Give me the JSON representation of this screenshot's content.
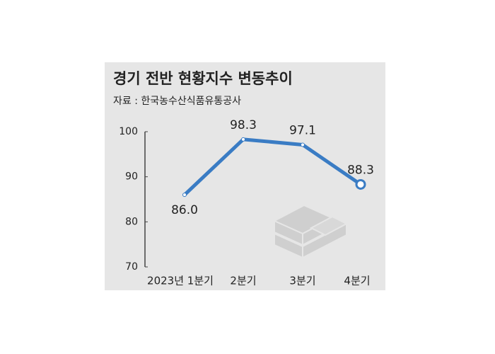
{
  "chart_data": {
    "type": "line",
    "title": "경기 전반 현황지수 변동추이",
    "subtitle": "자료 : 한국농수산식품유통공사",
    "categories": [
      "2023년 1분기",
      "2분기",
      "3분기",
      "4분기"
    ],
    "values": [
      86.0,
      98.3,
      97.1,
      88.3
    ],
    "value_labels": [
      "86.0",
      "98.3",
      "97.1",
      "88.3"
    ],
    "color": "#3a7cc4",
    "ylim": [
      70,
      100
    ],
    "yticks": [
      70,
      80,
      90,
      100
    ],
    "grid": false
  }
}
